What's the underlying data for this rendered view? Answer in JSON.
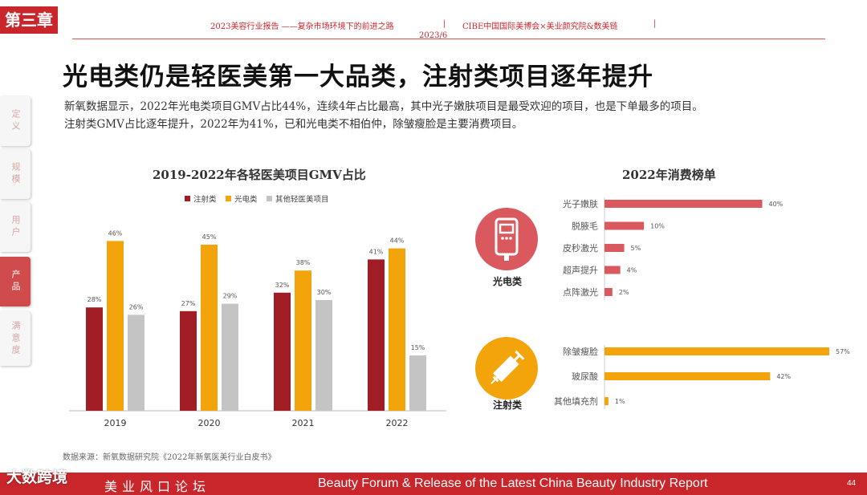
{
  "chapter": "第三章",
  "header": {
    "report_title": "2023美容行业报告 ——复杂市场环境下的前进之路",
    "date": "2023/6",
    "sep1": "|",
    "partners": "CIBE中国国际美博会×美业颜究院&数美链",
    "sep2": "|"
  },
  "side_nav": [
    {
      "label": "定义",
      "active": false
    },
    {
      "label": "规模",
      "active": false
    },
    {
      "label": "用户",
      "active": false
    },
    {
      "label": "产品",
      "active": true
    },
    {
      "label": "满意度",
      "active": false
    }
  ],
  "title": "光电类仍是轻医美第一大品类，注射类项目逐年提升",
  "intro": [
    "新氧数据显示，2022年光电类项目GMV占比44%，连续4年占比最高，其中光子嫩肤项目是最受欢迎的项目，也是下单最多的项目。",
    "注射类GMV占比逐年提升，2022年为41%，已和光电类不相伯仲，除皱瘦脸是主要消费项目。"
  ],
  "chart_data": [
    {
      "type": "bar",
      "title": "2019-2022年各轻医美项目GMV占比",
      "categories": [
        "2019",
        "2020",
        "2021",
        "2022"
      ],
      "series": [
        {
          "name": "注射类",
          "color": "#a11d25",
          "values": [
            28,
            27,
            32,
            41
          ]
        },
        {
          "name": "光电类",
          "color": "#f3a40b",
          "values": [
            46,
            45,
            38,
            44
          ]
        },
        {
          "name": "其他轻医美项目",
          "color": "#c4c4c4",
          "values": [
            26,
            29,
            30,
            15
          ]
        }
      ],
      "unit": "%",
      "ylim": [
        0,
        50
      ],
      "legend": "top"
    },
    {
      "type": "bar",
      "orientation": "horizontal",
      "title": "2022年消费榜单",
      "groups": [
        {
          "name": "光电类",
          "icon": "device-icon",
          "color": "#d9595e",
          "categories": [
            "光子嫩肤",
            "脱腋毛",
            "皮秒激光",
            "超声提升",
            "点阵激光"
          ],
          "values": [
            40,
            10,
            5,
            4,
            2
          ]
        },
        {
          "name": "注射类",
          "icon": "syringe-icon",
          "color": "#f3a40b",
          "categories": [
            "除皱瘦脸",
            "玻尿酸",
            "其他填充剂"
          ],
          "values": [
            57,
            42,
            1
          ]
        }
      ],
      "unit": "%"
    }
  ],
  "source": "数据来源：新氧数据研究院《2022年新氧医美行业白皮书》",
  "footer": {
    "left": "美业风口论坛",
    "right": "Beauty Forum & Release of the Latest China Beauty Industry Report",
    "page": "44"
  },
  "watermark": "大数跨境"
}
